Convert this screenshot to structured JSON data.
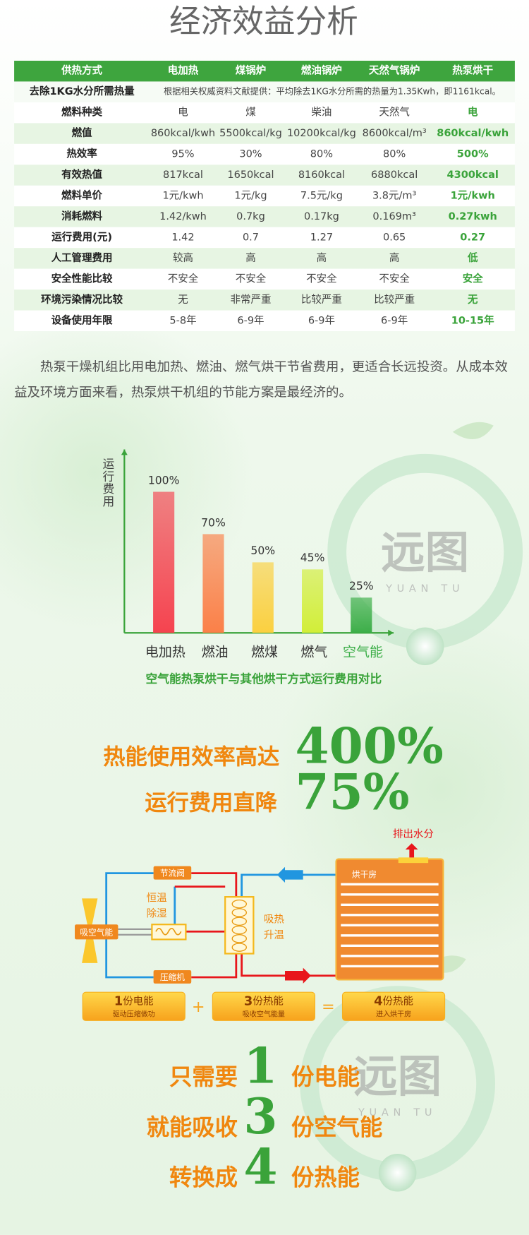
{
  "title": "经济效益分析",
  "table": {
    "header": [
      "供热方式",
      "电加热",
      "煤锅炉",
      "燃油锅炉",
      "天然气锅炉",
      "热泵烘干"
    ],
    "note_row": [
      "去除1KG水分所需热量",
      "根据相关权威资料文献提供：平均除去1KG水分所需的热量为1.35Kwh，即1161kcal。"
    ],
    "rows": [
      [
        "燃料种类",
        "电",
        "煤",
        "柴油",
        "天然气",
        "电"
      ],
      [
        "燃值",
        "860kcal/kwh",
        "5500kcal/kg",
        "10200kcal/kg",
        "8600kcal/m³",
        "860kcal/kwh"
      ],
      [
        "热效率",
        "95%",
        "30%",
        "80%",
        "80%",
        "500%"
      ],
      [
        "有效热值",
        "817kcal",
        "1650kcal",
        "8160kcal",
        "6880kcal",
        "4300kcal"
      ],
      [
        "燃料单价",
        "1元/kwh",
        "1元/kg",
        "7.5元/kg",
        "3.8元/m³",
        "1元/kwh"
      ],
      [
        "消耗燃料",
        "1.42/kwh",
        "0.7kg",
        "0.17kg",
        "0.169m³",
        "0.27kwh"
      ],
      [
        "运行费用(元)",
        "1.42",
        "0.7",
        "1.27",
        "0.65",
        "0.27"
      ],
      [
        "人工管理费用",
        "较高",
        "高",
        "高",
        "高",
        "低"
      ],
      [
        "安全性能比较",
        "不安全",
        "不安全",
        "不安全",
        "不安全",
        "安全"
      ],
      [
        "环境污染情况比较",
        "无",
        "非常严重",
        "比较严重",
        "比较严重",
        "无"
      ],
      [
        "设备使用年限",
        "5-8年",
        "6-9年",
        "6-9年",
        "6-9年",
        "10-15年"
      ]
    ]
  },
  "paragraph": "热泵干燥机组比用电加热、燃油、燃气烘干节省费用，更适合长远投资。从成本效益及环境方面来看，热泵烘干机组的节能方案是最经济的。",
  "chart_data": {
    "type": "bar",
    "ylabel": "运行费用",
    "caption": "空气能热泵烘干与其他烘干方式运行费用对比",
    "categories": [
      "电加热",
      "燃油",
      "燃煤",
      "燃气",
      "空气能"
    ],
    "values": [
      100,
      70,
      50,
      45,
      25
    ],
    "value_labels": [
      "100%",
      "70%",
      "50%",
      "45%",
      "25%"
    ],
    "colors": [
      "#f5434f",
      "#fb8048",
      "#fbd040",
      "#d2ee38",
      "#3cae48"
    ],
    "ylim": [
      0,
      130
    ]
  },
  "highlights": [
    {
      "label": "热能使用效率高达",
      "value": "400%"
    },
    {
      "label": "运行费用直降",
      "value": "75%"
    }
  ],
  "diagram": {
    "exhaust": "排出水分",
    "room": "烘干房",
    "valve": "节流阀",
    "dehumidify": [
      "恒温",
      "除湿"
    ],
    "air_intake": "吸空气能",
    "compressor": "压缩机",
    "heat_absorb": [
      "吸热",
      "升温"
    ],
    "energy": [
      {
        "num": "1",
        "unit": "份电能",
        "desc": "驱动压缩做功"
      },
      {
        "num": "3",
        "unit": "份热能",
        "desc": "吸收空气能量"
      },
      {
        "num": "4",
        "unit": "份热能",
        "desc": "进入烘干房"
      }
    ],
    "operators": [
      "+",
      "="
    ]
  },
  "summary": [
    {
      "pre": "只需要",
      "num": "1",
      "post": "份电能"
    },
    {
      "pre": "就能吸收",
      "num": "3",
      "post": "份空气能"
    },
    {
      "pre": "转换成",
      "num": "4",
      "post": "份热能"
    }
  ],
  "watermark": {
    "text": "远图",
    "sub": "YUAN TU"
  }
}
